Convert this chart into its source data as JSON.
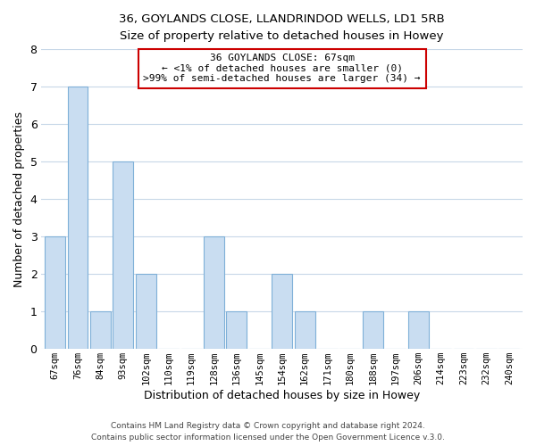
{
  "title_line1": "36, GOYLANDS CLOSE, LLANDRINDOD WELLS, LD1 5RB",
  "title_line2": "Size of property relative to detached houses in Howey",
  "xlabel": "Distribution of detached houses by size in Howey",
  "ylabel": "Number of detached properties",
  "categories": [
    "67sqm",
    "76sqm",
    "84sqm",
    "93sqm",
    "102sqm",
    "110sqm",
    "119sqm",
    "128sqm",
    "136sqm",
    "145sqm",
    "154sqm",
    "162sqm",
    "171sqm",
    "180sqm",
    "188sqm",
    "197sqm",
    "206sqm",
    "214sqm",
    "223sqm",
    "232sqm",
    "240sqm"
  ],
  "values": [
    3,
    7,
    1,
    5,
    2,
    0,
    0,
    3,
    1,
    0,
    2,
    1,
    0,
    0,
    1,
    0,
    1,
    0,
    0,
    0,
    0
  ],
  "bar_color": "#c9ddf1",
  "bar_edge_color": "#7fb0d8",
  "ylim": [
    0,
    8
  ],
  "yticks": [
    0,
    1,
    2,
    3,
    4,
    5,
    6,
    7,
    8
  ],
  "annotation_text": "36 GOYLANDS CLOSE: 67sqm\n← <1% of detached houses are smaller (0)\n>99% of semi-detached houses are larger (34) →",
  "annotation_box_edge_color": "#cc0000",
  "footer_line1": "Contains HM Land Registry data © Crown copyright and database right 2024.",
  "footer_line2": "Contains public sector information licensed under the Open Government Licence v.3.0.",
  "background_color": "#ffffff",
  "grid_color": "#c8d8e8"
}
